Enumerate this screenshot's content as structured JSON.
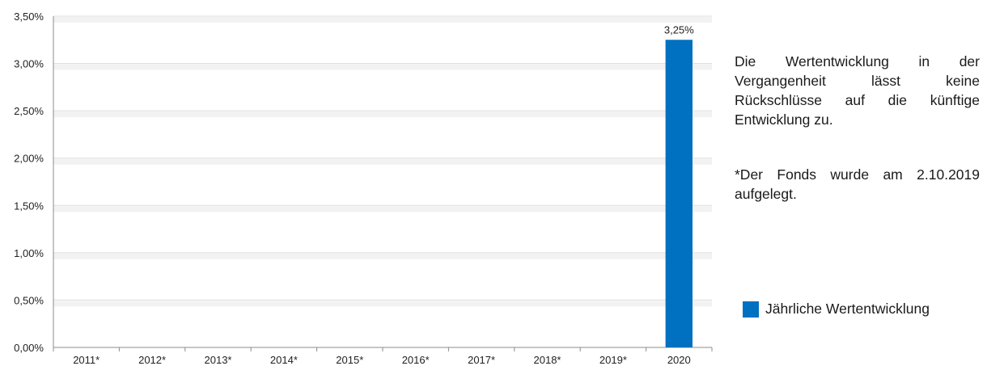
{
  "colors": {
    "bar": "#0070C0",
    "grid": "#dcdcdc",
    "band": "#f2f2f2",
    "axis": "#8c8c8c",
    "text": "#222222"
  },
  "notes": {
    "performance_disclaimer": "Die Wertentwicklung in der Vergangenheit lässt keine Rückschlüsse auf die künftige Entwicklung zu.",
    "launch_note": "*Der Fonds wurde am 2.10.2019 aufgelegt."
  },
  "chart_data": {
    "type": "bar",
    "categories": [
      "2011*",
      "2012*",
      "2013*",
      "2014*",
      "2015*",
      "2016*",
      "2017*",
      "2018*",
      "2019*",
      "2020"
    ],
    "series": [
      {
        "name": "Jährliche Wertentwicklung",
        "values": [
          null,
          null,
          null,
          null,
          null,
          null,
          null,
          null,
          null,
          3.25
        ],
        "data_labels": [
          "",
          "",
          "",
          "",
          "",
          "",
          "",
          "",
          "",
          "3,25%"
        ]
      }
    ],
    "ylim": [
      0,
      3.5
    ],
    "yticks": [
      0,
      0.5,
      1.0,
      1.5,
      2.0,
      2.5,
      3.0,
      3.5
    ],
    "ytick_labels": [
      "0,00%",
      "0,50%",
      "1,00%",
      "1,50%",
      "2,00%",
      "2,50%",
      "3,00%",
      "3,50%"
    ],
    "grid": true,
    "legend_position": "right",
    "xlabel": "",
    "ylabel": ""
  }
}
